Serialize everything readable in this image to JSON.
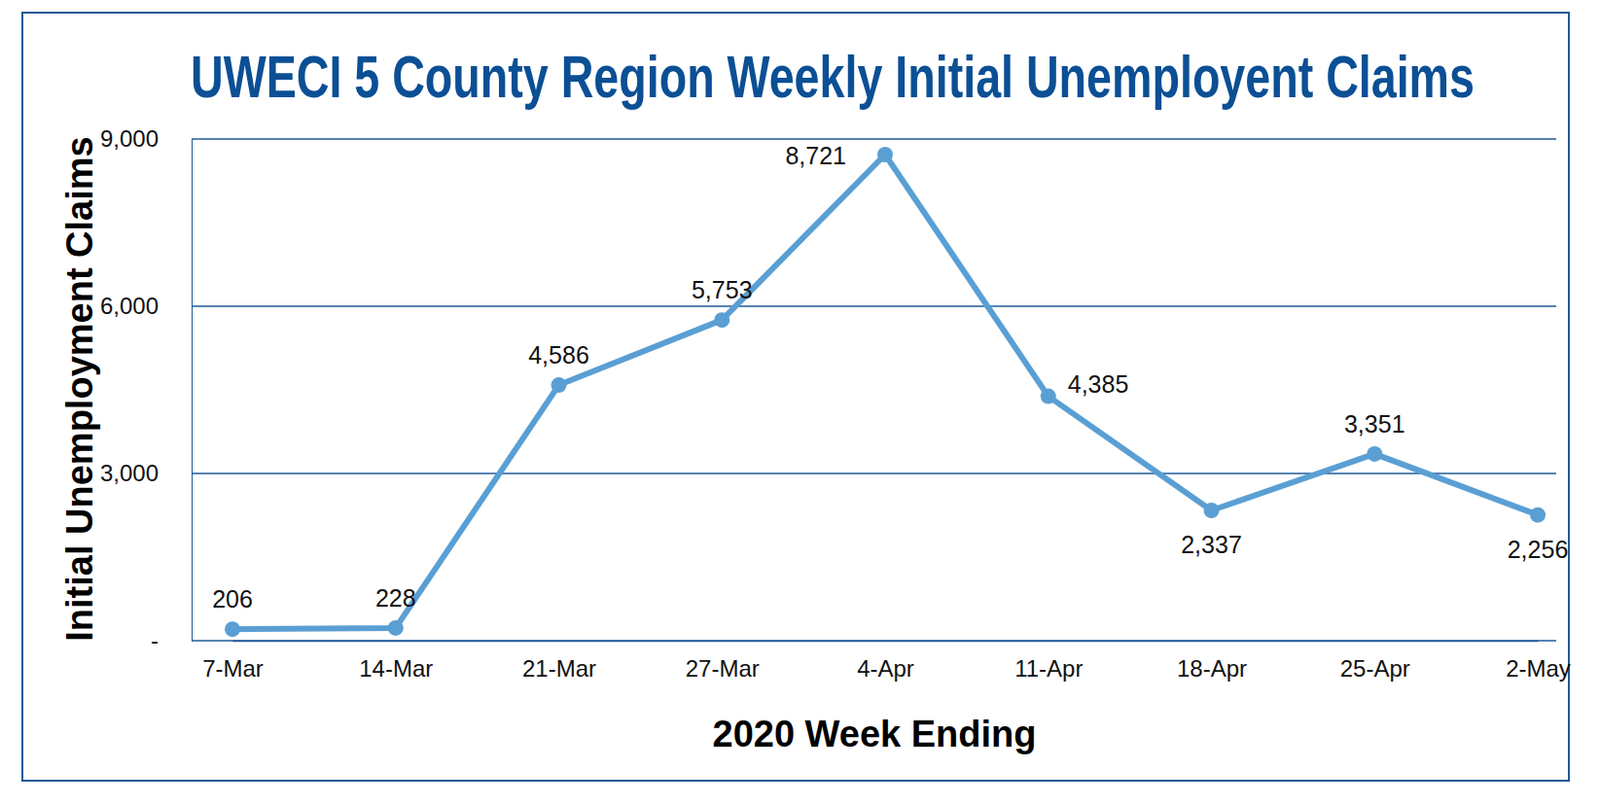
{
  "chart_data": {
    "type": "line",
    "title": "UWECI 5 County Region Weekly Initial Unemployent Claims",
    "x_label": "2020 Week Ending",
    "y_label": "Initial Unemployment Claims",
    "categories": [
      "7-Mar",
      "14-Mar",
      "21-Mar",
      "27-Mar",
      "4-Apr",
      "11-Apr",
      "18-Apr",
      "25-Apr",
      "2-May"
    ],
    "values": [
      206,
      228,
      4586,
      5753,
      8721,
      4385,
      2337,
      3351,
      2256
    ],
    "value_labels": [
      "206",
      "228",
      "4,586",
      "5,753",
      "8,721",
      "4,385",
      "2,337",
      "3,351",
      "2,256"
    ],
    "color": "#5a9fd4",
    "marker": "circle",
    "line_style": "solid",
    "data_labels": true,
    "grid": true,
    "ylim": [
      0,
      9000
    ],
    "yticks": [
      {
        "value": 0,
        "label": "-"
      },
      {
        "value": 3000,
        "label": "3,000"
      },
      {
        "value": 6000,
        "label": "6,000"
      },
      {
        "value": 9000,
        "label": "9,000"
      }
    ]
  }
}
